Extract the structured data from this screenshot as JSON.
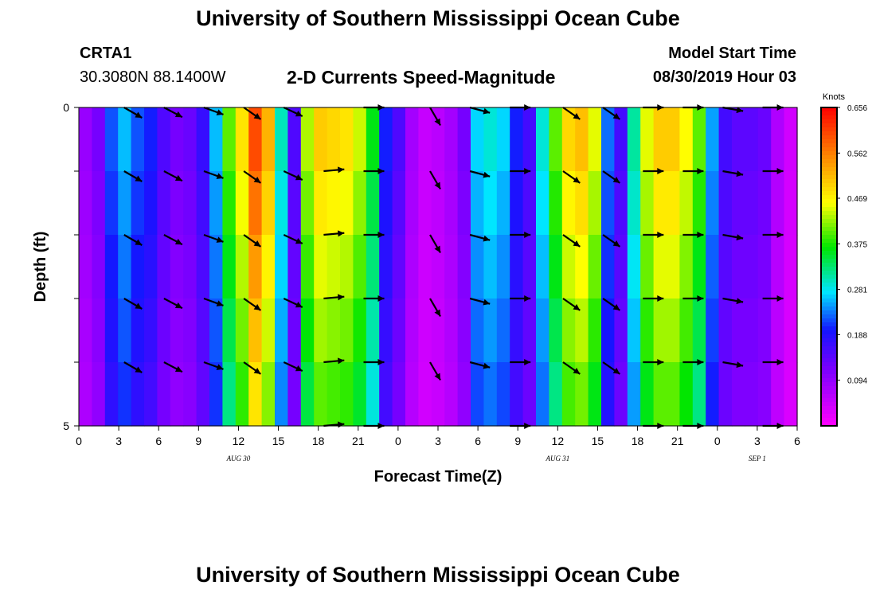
{
  "header": {
    "title": "University of Southern Mississippi Ocean Cube",
    "station_id": "CRTA1",
    "coordinates": "30.3080N 88.1400W",
    "subtitle": "2-D Currents Speed-Magnitude",
    "model_start_label": "Model Start Time",
    "model_start_value": "08/30/2019 Hour 03"
  },
  "footer": {
    "title": "University of Southern Mississippi Ocean Cube"
  },
  "chart_data": {
    "type": "heatmap",
    "xlabel": "Forecast Time(Z)",
    "ylabel": "Depth (ft)",
    "x_tick_labels": [
      "0",
      "3",
      "6",
      "9",
      "12",
      "15",
      "18",
      "21",
      "0",
      "3",
      "6",
      "9",
      "12",
      "15",
      "18",
      "21",
      "0",
      "3",
      "6"
    ],
    "x_range_hours": [
      0,
      54
    ],
    "date_labels": [
      {
        "text": "AUG 30",
        "hour": 12
      },
      {
        "text": "AUG 31",
        "hour": 36
      },
      {
        "text": "SEP 1",
        "hour": 51
      }
    ],
    "y_tick_labels": [
      "0",
      "5"
    ],
    "y_range": [
      0,
      5
    ],
    "colorbar": {
      "units": "Knots",
      "min": 0.0,
      "max": 0.656,
      "tick_labels": [
        "0.656",
        "0.562",
        "0.469",
        "0.375",
        "0.281",
        "0.188",
        "0.094"
      ]
    },
    "speed_knots_by_hour": [
      0.09,
      0.12,
      0.22,
      0.26,
      0.22,
      0.2,
      0.15,
      0.12,
      0.13,
      0.17,
      0.26,
      0.4,
      0.48,
      0.6,
      0.52,
      0.3,
      0.15,
      0.43,
      0.5,
      0.49,
      0.48,
      0.44,
      0.36,
      0.2,
      0.15,
      0.08,
      0.05,
      0.06,
      0.08,
      0.12,
      0.27,
      0.29,
      0.27,
      0.2,
      0.16,
      0.29,
      0.4,
      0.49,
      0.51,
      0.45,
      0.23,
      0.16,
      0.31,
      0.45,
      0.5,
      0.5,
      0.46,
      0.4,
      0.25,
      0.16,
      0.14,
      0.14,
      0.13,
      0.07,
      0.04
    ],
    "arrow_hours": [
      4,
      7,
      10,
      13,
      16,
      19,
      22,
      27,
      30,
      33,
      37,
      40,
      43,
      46,
      49,
      52
    ],
    "arrow_depths_ft": [
      0,
      1,
      2,
      3,
      4,
      5
    ],
    "arrow_directions_deg": [
      120,
      118,
      110,
      125,
      115,
      85,
      90,
      150,
      105,
      90,
      125,
      125,
      90,
      90,
      100,
      90
    ]
  }
}
